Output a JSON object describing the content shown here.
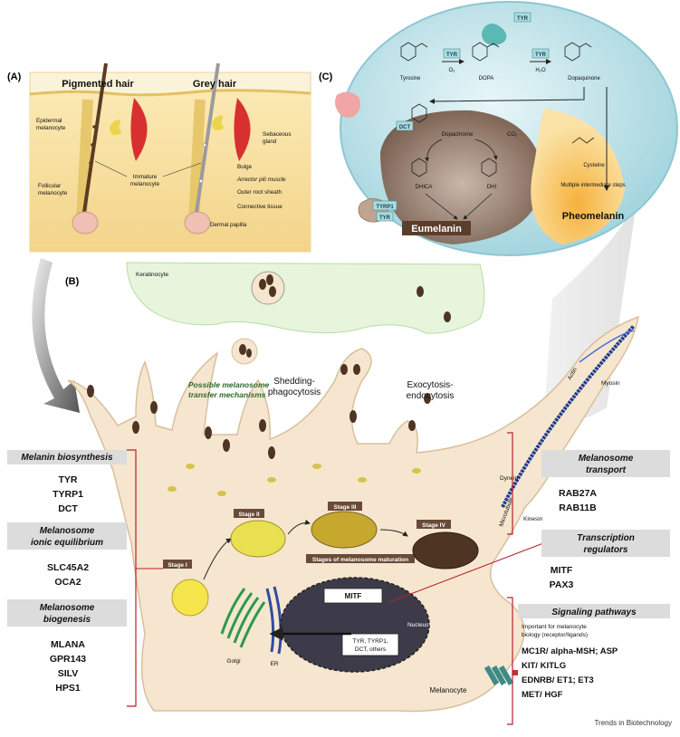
{
  "panels": {
    "a": "(A)",
    "b": "(B)",
    "c": "(C)"
  },
  "panel_a": {
    "title_left": "Pigmented hair",
    "title_right": "Grey hair",
    "labels": {
      "epidermal": [
        "Epidermal",
        "melanocyte"
      ],
      "follicular": [
        "Follicular",
        "melanocyte"
      ],
      "immature": [
        "Immature",
        "melanocyte"
      ],
      "sebaceous": [
        "Sebaceous",
        "gland"
      ],
      "bulge": "Bulge",
      "arrector": "Arrector pili muscle",
      "ors": "Outer root sheath",
      "connective": "Connective tissue",
      "papilla": "Dermal papilla"
    }
  },
  "panel_b": {
    "keratinocyte": "Keratinocyte",
    "transfer": [
      "Possible melanosome",
      "transfer mechanisms"
    ],
    "shedding": [
      "Shedding-",
      "phagocytosis"
    ],
    "exocytosis": [
      "Exocytosis-",
      "endocytosis"
    ],
    "stages": [
      "Stage I",
      "Stage II",
      "Stage III",
      "Stage IV"
    ],
    "maturation": "Stages of melanosome maturation",
    "golgi": "Golgi",
    "er": "ER",
    "mitf_box": "MITF",
    "targets": [
      "TYR, TYRP1,",
      "DCT, others"
    ],
    "nucleus": "Nucleus",
    "melanocyte": "Melanocyte",
    "motors": {
      "actin": "Actin",
      "myosin": "Myosin",
      "dynein": "Dynein",
      "microtubule": "Microtubule",
      "kinesin": "Kinesin"
    }
  },
  "panel_c": {
    "tyr_top": "TYR",
    "tyrosine": "Tyrosine",
    "dopa": "DOPA",
    "dopaquinone": "Dopaquinone",
    "tyr1": "TYR",
    "tyr2": "TYR",
    "o2": "O₂",
    "h2o": "H₂O",
    "dct": "DCT",
    "dopachrome": "Dopachrome",
    "co2": "CO₂",
    "dhica": "DHICA",
    "dhi": "DHI",
    "cysteine": "Cysteine",
    "intermediate": "Multiple intermediate steps",
    "tyrp1": "TYRP1",
    "tyr3": "TYR",
    "eumelanin": "Eumelanin",
    "pheomelanin": "Pheomelanin"
  },
  "boxes": {
    "biosynthesis": {
      "title": "Melanin biosynthesis",
      "genes": [
        "TYR",
        "TYRP1",
        "DCT"
      ]
    },
    "ionic": {
      "title": [
        "Melanosome",
        "ionic equilibrium"
      ],
      "genes": [
        "SLC45A2",
        "OCA2"
      ]
    },
    "biogenesis": {
      "title": [
        "Melanosome",
        "biogenesis"
      ],
      "genes": [
        "MLANA",
        "GPR143",
        "SILV",
        "HPS1"
      ]
    },
    "transport": {
      "title": [
        "Melanosome",
        "transport"
      ],
      "genes": [
        "RAB27A",
        "RAB11B"
      ]
    },
    "transcription": {
      "title": [
        "Transcription",
        "regulators"
      ],
      "genes": [
        "MITF",
        "PAX3"
      ]
    },
    "signaling": {
      "title": "Signaling pathways",
      "subtitle": [
        "Important for melanocyte",
        "biology (receptor/ligands)"
      ],
      "genes": [
        "MC1R/ alpha-MSH; ASP",
        "KIT/ KITLG",
        "EDNRB/ ET1; ET3",
        "MET/ HGF"
      ]
    }
  },
  "footer": "Trends in Biotechnology",
  "colors": {
    "cell": "#f6e6cf",
    "cell_edge": "#d8bf9c",
    "keratinocyte": "#e6f5dc",
    "melanosome": "#4e3422",
    "skin": "#f7dc99",
    "sphere": "#c5e6ec",
    "nucleus": "#3d3b4a",
    "accent": "#b8202b"
  }
}
